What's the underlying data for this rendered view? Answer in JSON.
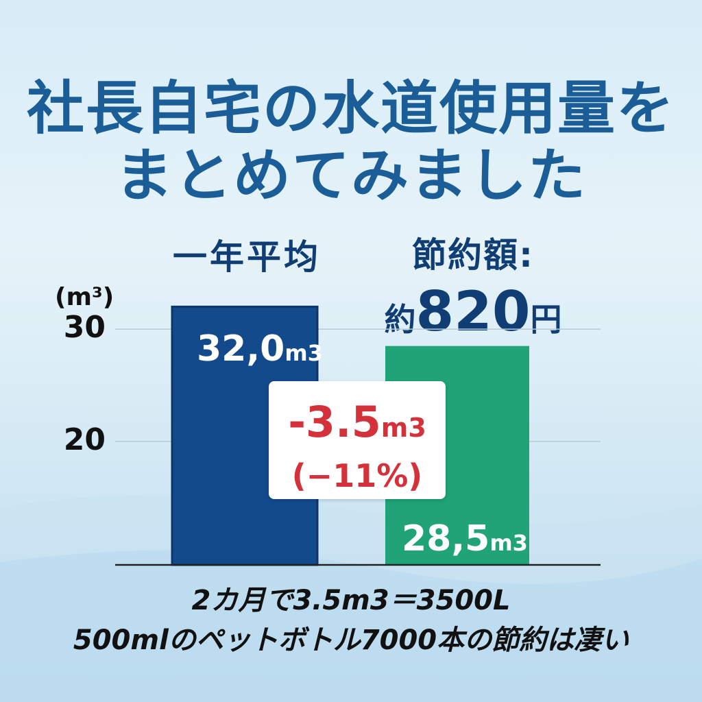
{
  "title": {
    "line1": "社長自宅の水道使用量を",
    "line2": "まとめてみました"
  },
  "savings": {
    "label": "節約額:",
    "prefix": "約",
    "amount": "820",
    "suffix": "円"
  },
  "difference": {
    "value": "-3.5",
    "unit": "m3",
    "percent": "(−11%)"
  },
  "notes": {
    "line1": "2カ月で3.5m3＝3500L",
    "line2": "500mlのペットボトル7000本の節約は凄い"
  },
  "colors": {
    "title": "#1b5d97",
    "bar_average": "#134a8c",
    "bar_current": "#1fa377",
    "difference": "#d4323b"
  },
  "chart_data": {
    "type": "bar",
    "categories": [
      "一年平均",
      ""
    ],
    "values": [
      32.0,
      28.5
    ],
    "value_labels": [
      "32,0",
      "28,5"
    ],
    "value_unit": "m3",
    "ylabel": "(m³)",
    "yticks": [
      20,
      30
    ],
    "ylim": [
      9,
      33
    ],
    "grid": true,
    "bar_colors": [
      "#134a8c",
      "#1fa377"
    ]
  }
}
